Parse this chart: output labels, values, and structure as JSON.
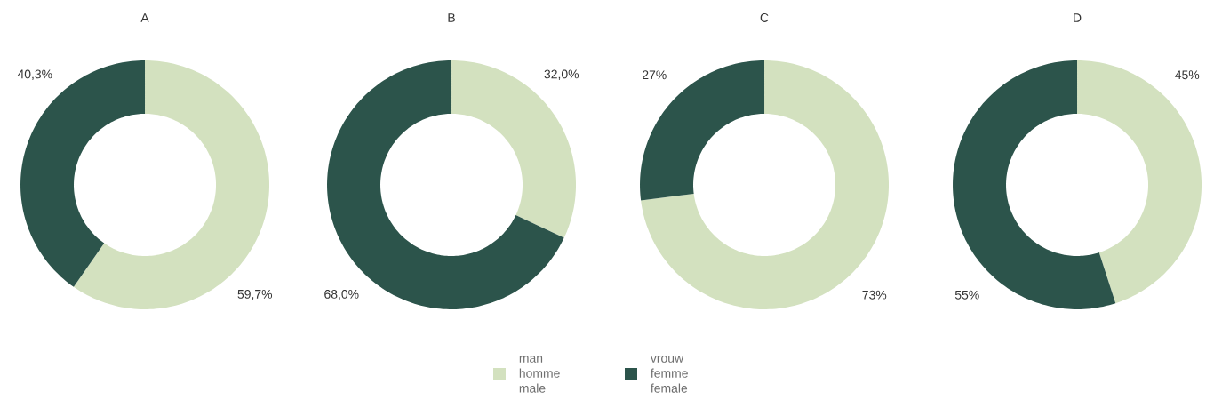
{
  "chart_data": [
    {
      "type": "donut",
      "title": "A",
      "categories": [
        "man homme male",
        "vrouw femme female"
      ],
      "values": [
        59.7,
        40.3
      ],
      "colors": [
        "#d3e1bf",
        "#2c544b"
      ],
      "value_labels": [
        "59,7%",
        "40,3%"
      ],
      "legend": "bottom"
    },
    {
      "type": "donut",
      "title": "B",
      "categories": [
        null,
        null
      ],
      "values": [
        32.0,
        68.0
      ],
      "colors": [
        "#d3e1bf",
        "#2c544b"
      ],
      "value_labels": [
        "32,0%",
        "68,0%"
      ]
    },
    {
      "type": "donut",
      "title": "C",
      "categories": [
        null,
        null
      ],
      "values": [
        73,
        27
      ],
      "colors": [
        "#d3e1bf",
        "#2c544b"
      ],
      "value_labels": [
        "73%",
        "27%"
      ]
    },
    {
      "type": "donut",
      "title": "D",
      "categories": [
        null,
        null
      ],
      "values": [
        45,
        55
      ],
      "colors": [
        "#d3e1bf",
        "#2c544b"
      ],
      "value_labels": [
        "45%",
        "55%"
      ]
    }
  ]
}
